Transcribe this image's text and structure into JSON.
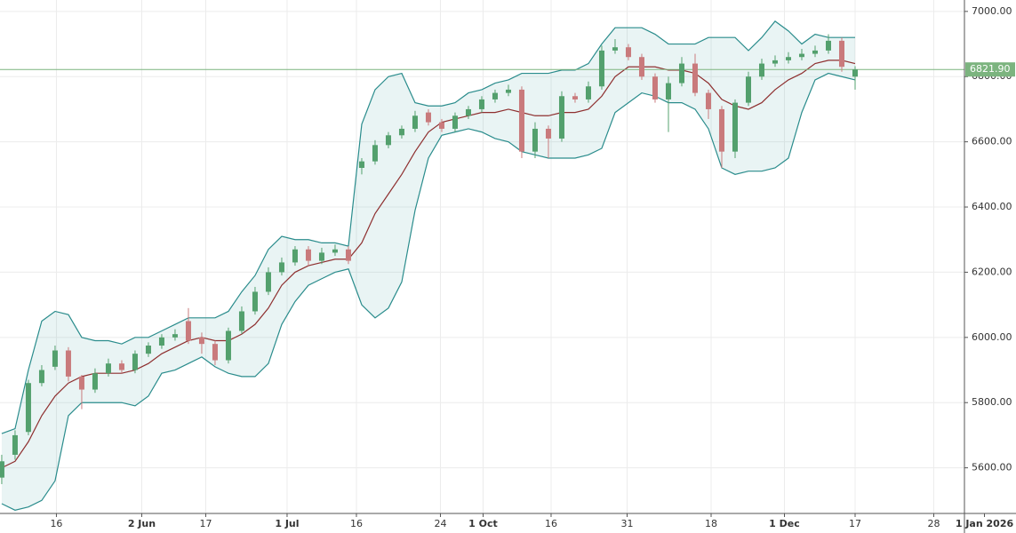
{
  "chart_data": {
    "type": "candlestick",
    "open": [
      5570,
      5640,
      5710,
      5860,
      5910,
      5960,
      5880,
      5840,
      5890,
      5920,
      5900,
      5950,
      5975,
      6000,
      6050,
      6000,
      5980,
      5930,
      6020,
      6080,
      6140,
      6200,
      6230,
      6270,
      6235,
      6260,
      6270,
      6520,
      6540,
      6590,
      6620,
      6640,
      6690,
      6660,
      6640,
      6680,
      6700,
      6730,
      6750,
      6760,
      6570,
      6640,
      6610,
      6740,
      6730,
      6770,
      6880,
      6890,
      6860,
      6800,
      6730,
      6780,
      6840,
      6750,
      6700,
      6570,
      6720,
      6800,
      6840,
      6850,
      6860,
      6870,
      6880,
      6910,
      6800
    ],
    "high": [
      5640,
      5715,
      5870,
      5915,
      5975,
      5970,
      5885,
      5905,
      5935,
      5930,
      5960,
      5985,
      6010,
      6025,
      6090,
      6015,
      5990,
      6030,
      6095,
      6155,
      6215,
      6245,
      6280,
      6280,
      6275,
      6285,
      6280,
      6550,
      6605,
      6630,
      6650,
      6695,
      6700,
      6670,
      6690,
      6710,
      6740,
      6760,
      6775,
      6770,
      6660,
      6650,
      6755,
      6750,
      6785,
      6895,
      6915,
      6900,
      6870,
      6810,
      6800,
      6860,
      6870,
      6760,
      6710,
      6730,
      6815,
      6855,
      6865,
      6875,
      6885,
      6895,
      6930,
      6920,
      6832
    ],
    "low": [
      5550,
      5625,
      5700,
      5850,
      5900,
      5865,
      5780,
      5830,
      5880,
      5890,
      5890,
      5940,
      5965,
      5990,
      5980,
      5950,
      5915,
      5920,
      6010,
      6070,
      6130,
      6190,
      6220,
      6220,
      6225,
      6250,
      6225,
      6500,
      6530,
      6580,
      6610,
      6630,
      6650,
      6630,
      6630,
      6670,
      6690,
      6720,
      6740,
      6550,
      6550,
      6550,
      6600,
      6720,
      6720,
      6760,
      6870,
      6850,
      6790,
      6720,
      6630,
      6770,
      6740,
      6670,
      6520,
      6550,
      6710,
      6790,
      6830,
      6840,
      6850,
      6860,
      6870,
      6815,
      6760
    ],
    "close": [
      5620,
      5700,
      5860,
      5900,
      5960,
      5880,
      5840,
      5890,
      5920,
      5900,
      5950,
      5975,
      6000,
      6010,
      5990,
      5980,
      5930,
      6020,
      6080,
      6140,
      6200,
      6230,
      6270,
      6235,
      6260,
      6270,
      6235,
      6540,
      6590,
      6620,
      6640,
      6680,
      6660,
      6640,
      6680,
      6700,
      6730,
      6750,
      6760,
      6570,
      6640,
      6610,
      6740,
      6730,
      6770,
      6880,
      6890,
      6860,
      6800,
      6730,
      6780,
      6840,
      6750,
      6700,
      6570,
      6720,
      6800,
      6840,
      6850,
      6860,
      6870,
      6880,
      6910,
      6830,
      6821.9
    ],
    "bb_upper": [
      5705,
      5720,
      5900,
      6050,
      6080,
      6070,
      6000,
      5990,
      5990,
      5980,
      6000,
      6000,
      6020,
      6040,
      6060,
      6060,
      6060,
      6080,
      6140,
      6190,
      6270,
      6310,
      6300,
      6300,
      6290,
      6290,
      6280,
      6654,
      6760,
      6800,
      6810,
      6720,
      6710,
      6710,
      6720,
      6750,
      6760,
      6780,
      6790,
      6810,
      6810,
      6810,
      6820,
      6820,
      6840,
      6900,
      6950,
      6950,
      6950,
      6930,
      6900,
      6900,
      6900,
      6920,
      6920,
      6920,
      6880,
      6920,
      6970,
      6940,
      6900,
      6930,
      6920,
      6920,
      6920
    ],
    "bb_middle": [
      5600,
      5620,
      5680,
      5760,
      5820,
      5860,
      5880,
      5890,
      5890,
      5890,
      5900,
      5920,
      5950,
      5970,
      5990,
      6000,
      5990,
      5990,
      6010,
      6040,
      6090,
      6160,
      6200,
      6220,
      6230,
      6240,
      6240,
      6290,
      6380,
      6440,
      6500,
      6570,
      6630,
      6660,
      6670,
      6680,
      6690,
      6690,
      6700,
      6690,
      6680,
      6680,
      6690,
      6690,
      6700,
      6740,
      6800,
      6830,
      6830,
      6830,
      6820,
      6820,
      6810,
      6780,
      6730,
      6710,
      6700,
      6720,
      6760,
      6790,
      6810,
      6840,
      6850,
      6850,
      6840
    ],
    "bb_lower": [
      5490,
      5470,
      5480,
      5500,
      5560,
      5760,
      5800,
      5800,
      5800,
      5800,
      5790,
      5820,
      5890,
      5900,
      5920,
      5940,
      5910,
      5890,
      5880,
      5880,
      5920,
      6040,
      6110,
      6160,
      6180,
      6200,
      6210,
      6100,
      6060,
      6090,
      6170,
      6390,
      6550,
      6620,
      6630,
      6640,
      6630,
      6610,
      6600,
      6570,
      6560,
      6550,
      6550,
      6550,
      6560,
      6580,
      6690,
      6720,
      6750,
      6740,
      6720,
      6720,
      6700,
      6640,
      6520,
      6500,
      6510,
      6510,
      6520,
      6550,
      6690,
      6790,
      6810,
      6800,
      6790
    ],
    "up_color": "#53a06d",
    "down_color": "#c97a7c",
    "band_color": "#2a8c8c",
    "band_fill": "rgba(42,150,150,0.1)",
    "middle_color": "#8e2f2f",
    "price_line_color": "#7cb47f",
    "last_price": {
      "value": 6821.9,
      "label": "6821.90"
    },
    "ylim": [
      5460,
      7035
    ],
    "yticks": [
      {
        "value": 5600,
        "label": "5600.00"
      },
      {
        "value": 5800,
        "label": "5800.00"
      },
      {
        "value": 6000,
        "label": "6000.00"
      },
      {
        "value": 6200,
        "label": "6200.00"
      },
      {
        "value": 6400,
        "label": "6400.00"
      },
      {
        "value": 6600,
        "label": "6600.00"
      },
      {
        "value": 6800,
        "label": "6800.00"
      },
      {
        "value": 7000,
        "label": "7000.00"
      }
    ],
    "xlim": [
      -0.13,
      72.2
    ],
    "xticks": [
      {
        "value": 4.1,
        "label": "16"
      },
      {
        "value": 10.5,
        "label": "2 Jun"
      },
      {
        "value": 15.3,
        "label": "17"
      },
      {
        "value": 21.4,
        "label": "1 Jul"
      },
      {
        "value": 26.6,
        "label": "16"
      },
      {
        "value": 32.9,
        "label": "24"
      },
      {
        "value": 36.1,
        "label": "1 Oct"
      },
      {
        "value": 41.2,
        "label": "16"
      },
      {
        "value": 46.9,
        "label": "31"
      },
      {
        "value": 53.2,
        "label": "18"
      },
      {
        "value": 58.7,
        "label": "1 Dec"
      },
      {
        "value": 64,
        "label": "17"
      },
      {
        "value": 69.9,
        "label": "28"
      },
      {
        "value": 73.7,
        "label": "1 Jan 2026"
      }
    ],
    "grid": true
  }
}
